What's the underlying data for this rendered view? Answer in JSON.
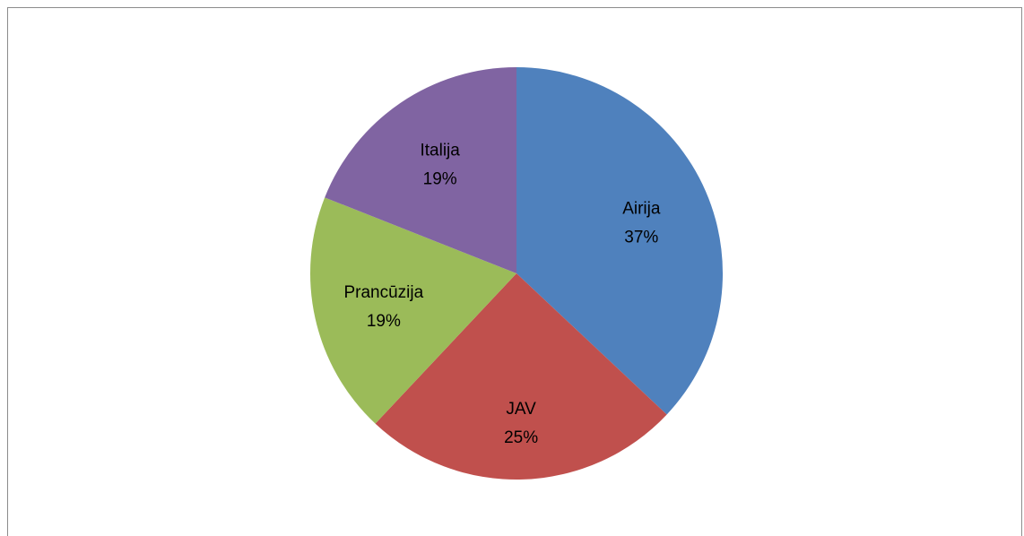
{
  "chart_data": {
    "type": "pie",
    "title": "",
    "categories": [
      "Airija",
      "JAV",
      "Prancūzija",
      "Italija"
    ],
    "values": [
      37,
      25,
      19,
      19
    ],
    "unit": "%",
    "labels": [
      "37%",
      "25%",
      "19%",
      "19%"
    ],
    "colors": [
      "#4F81BD",
      "#C0504D",
      "#9BBB59",
      "#8064A2"
    ],
    "legend": "none",
    "data_labels": "category-and-percent"
  }
}
